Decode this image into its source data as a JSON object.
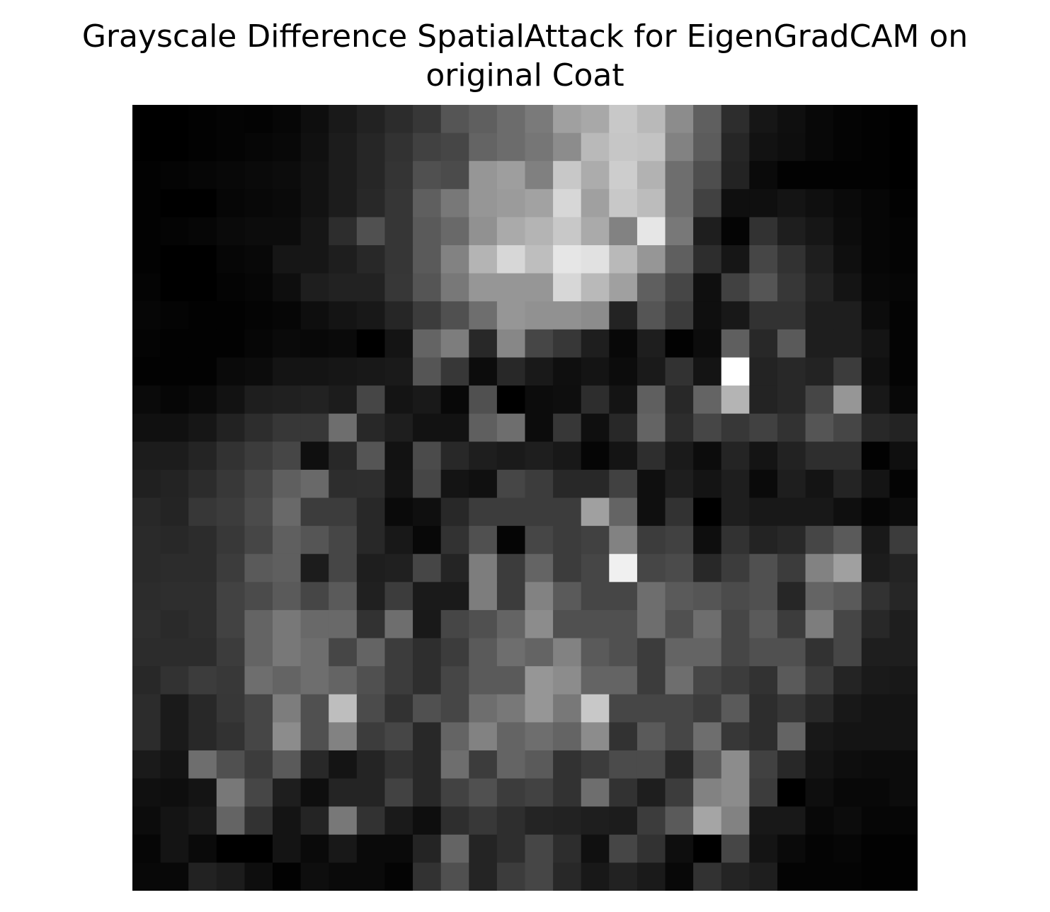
{
  "chart_data": {
    "type": "heatmap",
    "title": "Grayscale Difference SpatialAttack for EigenGradCAM on original Coat",
    "title_lines": [
      "Grayscale Difference SpatialAttack for EigenGradCAM on",
      "original Coat"
    ],
    "colormap": "gray",
    "value_range": [
      0,
      255
    ],
    "axes_visible": false,
    "rows": 28,
    "cols": 28,
    "values": [
      [
        0,
        0,
        2,
        4,
        3,
        6,
        14,
        25,
        34,
        44,
        55,
        85,
        95,
        108,
        122,
        160,
        168,
        200,
        185,
        140,
        95,
        45,
        22,
        15,
        8,
        4,
        2,
        0
      ],
      [
        0,
        0,
        2,
        4,
        6,
        8,
        16,
        28,
        38,
        50,
        65,
        70,
        100,
        108,
        118,
        140,
        185,
        198,
        195,
        130,
        92,
        38,
        18,
        14,
        8,
        4,
        2,
        0
      ],
      [
        2,
        4,
        6,
        8,
        10,
        12,
        18,
        28,
        38,
        52,
        80,
        75,
        150,
        158,
        128,
        200,
        172,
        205,
        178,
        110,
        78,
        35,
        10,
        2,
        2,
        2,
        2,
        0
      ],
      [
        2,
        0,
        0,
        6,
        8,
        10,
        18,
        28,
        40,
        54,
        95,
        120,
        150,
        155,
        162,
        215,
        160,
        200,
        188,
        110,
        65,
        15,
        15,
        20,
        15,
        10,
        6,
        2
      ],
      [
        2,
        4,
        6,
        10,
        12,
        12,
        22,
        45,
        80,
        54,
        90,
        105,
        145,
        170,
        180,
        200,
        170,
        130,
        230,
        120,
        30,
        4,
        50,
        30,
        22,
        12,
        6,
        4
      ],
      [
        2,
        0,
        0,
        6,
        8,
        22,
        22,
        30,
        40,
        54,
        90,
        130,
        180,
        215,
        190,
        230,
        225,
        185,
        150,
        95,
        45,
        22,
        70,
        50,
        30,
        15,
        6,
        4
      ],
      [
        4,
        0,
        0,
        4,
        6,
        14,
        30,
        34,
        34,
        55,
        85,
        120,
        150,
        150,
        150,
        215,
        185,
        160,
        95,
        70,
        15,
        65,
        85,
        55,
        35,
        20,
        8,
        6
      ],
      [
        6,
        4,
        2,
        2,
        4,
        6,
        14,
        20,
        24,
        38,
        60,
        80,
        110,
        150,
        145,
        145,
        140,
        35,
        85,
        60,
        15,
        24,
        50,
        50,
        30,
        30,
        12,
        4
      ],
      [
        4,
        2,
        2,
        2,
        6,
        10,
        8,
        10,
        0,
        20,
        100,
        125,
        40,
        135,
        70,
        55,
        30,
        8,
        30,
        2,
        12,
        95,
        40,
        90,
        30,
        30,
        20,
        4
      ],
      [
        2,
        2,
        2,
        10,
        12,
        20,
        20,
        22,
        24,
        26,
        85,
        55,
        12,
        40,
        25,
        15,
        20,
        12,
        26,
        50,
        20,
        255,
        35,
        40,
        35,
        60,
        16,
        4
      ],
      [
        10,
        6,
        10,
        18,
        30,
        32,
        34,
        28,
        70,
        20,
        25,
        8,
        80,
        0,
        12,
        14,
        45,
        20,
        95,
        40,
        100,
        180,
        35,
        40,
        70,
        150,
        24,
        8
      ],
      [
        16,
        16,
        22,
        34,
        45,
        55,
        55,
        110,
        40,
        30,
        18,
        18,
        95,
        110,
        12,
        55,
        15,
        40,
        100,
        45,
        70,
        55,
        65,
        50,
        85,
        70,
        40,
        35
      ],
      [
        28,
        28,
        36,
        50,
        60,
        70,
        15,
        40,
        85,
        18,
        75,
        40,
        30,
        26,
        30,
        24,
        5,
        20,
        46,
        26,
        12,
        36,
        20,
        34,
        46,
        46,
        2,
        15
      ],
      [
        32,
        35,
        44,
        56,
        70,
        95,
        105,
        45,
        46,
        20,
        70,
        20,
        16,
        70,
        60,
        40,
        40,
        65,
        15,
        30,
        20,
        30,
        10,
        30,
        20,
        36,
        20,
        4
      ],
      [
        40,
        36,
        55,
        60,
        75,
        105,
        60,
        60,
        40,
        10,
        15,
        40,
        60,
        60,
        60,
        60,
        160,
        100,
        15,
        50,
        0,
        30,
        24,
        24,
        24,
        15,
        6,
        12
      ],
      [
        42,
        40,
        44,
        56,
        70,
        95,
        85,
        70,
        40,
        24,
        8,
        50,
        80,
        5,
        70,
        60,
        65,
        130,
        60,
        65,
        14,
        50,
        35,
        40,
        70,
        90,
        25,
        60
      ],
      [
        42,
        44,
        44,
        60,
        90,
        95,
        28,
        70,
        30,
        32,
        70,
        36,
        125,
        60,
        100,
        60,
        70,
        240,
        70,
        75,
        40,
        60,
        80,
        60,
        130,
        160,
        28,
        35
      ],
      [
        44,
        46,
        46,
        66,
        75,
        90,
        70,
        90,
        32,
        60,
        26,
        26,
        125,
        60,
        130,
        90,
        70,
        70,
        110,
        90,
        85,
        75,
        80,
        38,
        100,
        90,
        50,
        38
      ],
      [
        46,
        42,
        46,
        66,
        100,
        120,
        105,
        105,
        50,
        110,
        25,
        70,
        80,
        100,
        140,
        80,
        80,
        80,
        110,
        80,
        110,
        70,
        90,
        60,
        125,
        70,
        40,
        30
      ],
      [
        44,
        44,
        44,
        60,
        100,
        120,
        110,
        70,
        100,
        60,
        46,
        60,
        90,
        110,
        100,
        130,
        90,
        80,
        60,
        100,
        100,
        70,
        80,
        80,
        50,
        70,
        30,
        30
      ],
      [
        40,
        50,
        60,
        56,
        110,
        100,
        110,
        100,
        80,
        60,
        46,
        70,
        90,
        90,
        150,
        140,
        100,
        100,
        60,
        110,
        70,
        60,
        50,
        90,
        60,
        36,
        26,
        24
      ],
      [
        44,
        26,
        40,
        55,
        70,
        125,
        80,
        190,
        75,
        50,
        80,
        70,
        110,
        120,
        150,
        120,
        200,
        70,
        70,
        70,
        60,
        90,
        45,
        55,
        40,
        24,
        20,
        20
      ],
      [
        44,
        26,
        40,
        50,
        70,
        140,
        80,
        130,
        60,
        70,
        40,
        100,
        130,
        100,
        110,
        100,
        140,
        50,
        90,
        70,
        110,
        55,
        45,
        100,
        24,
        20,
        20,
        20
      ],
      [
        26,
        20,
        110,
        80,
        60,
        90,
        40,
        20,
        36,
        50,
        40,
        110,
        60,
        100,
        90,
        50,
        60,
        75,
        75,
        40,
        90,
        140,
        65,
        40,
        20,
        14,
        12,
        12
      ],
      [
        16,
        14,
        20,
        120,
        70,
        30,
        14,
        36,
        36,
        66,
        40,
        66,
        80,
        60,
        66,
        50,
        110,
        50,
        30,
        60,
        130,
        140,
        60,
        0,
        14,
        8,
        8,
        12
      ],
      [
        12,
        20,
        26,
        100,
        50,
        20,
        36,
        120,
        50,
        26,
        14,
        46,
        56,
        46,
        36,
        34,
        30,
        28,
        60,
        90,
        165,
        130,
        24,
        24,
        8,
        12,
        6,
        6
      ],
      [
        6,
        20,
        10,
        0,
        0,
        20,
        10,
        24,
        10,
        10,
        36,
        100,
        36,
        46,
        70,
        45,
        16,
        70,
        50,
        14,
        0,
        70,
        20,
        10,
        4,
        6,
        2,
        2
      ],
      [
        8,
        8,
        34,
        28,
        14,
        2,
        14,
        10,
        10,
        4,
        50,
        80,
        36,
        60,
        70,
        40,
        24,
        34,
        26,
        8,
        50,
        36,
        30,
        4,
        4,
        4,
        2,
        2
      ]
    ]
  }
}
